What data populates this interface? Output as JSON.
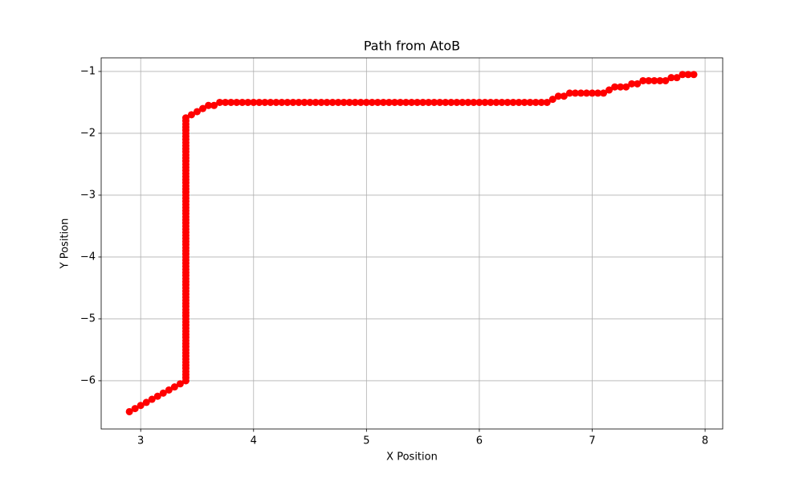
{
  "chart_data": {
    "type": "line",
    "title": "Path from AtoB",
    "x_label": "X Position",
    "y_label": "Y Position",
    "xlim": [
      2.65,
      8.156
    ],
    "ylim": [
      -6.78,
      -0.78
    ],
    "xticks": [
      3,
      4,
      5,
      6,
      7,
      8
    ],
    "yticks": [
      {
        "value": -6,
        "label": "−6"
      },
      {
        "value": -5,
        "label": "−5"
      },
      {
        "value": -4,
        "label": "−4"
      },
      {
        "value": -3,
        "label": "−3"
      },
      {
        "value": -2,
        "label": "−2"
      },
      {
        "value": -1,
        "label": "−1"
      }
    ],
    "grid": true,
    "series": [
      {
        "color": "#ff0000",
        "marker": "o",
        "x": [
          2.9,
          2.95,
          3.0,
          3.05,
          3.1,
          3.15,
          3.2,
          3.25,
          3.3,
          3.35,
          3.4,
          3.4,
          3.4,
          3.4,
          3.4,
          3.4,
          3.4,
          3.4,
          3.4,
          3.4,
          3.4,
          3.4,
          3.4,
          3.4,
          3.4,
          3.4,
          3.4,
          3.4,
          3.4,
          3.4,
          3.4,
          3.4,
          3.4,
          3.4,
          3.4,
          3.4,
          3.4,
          3.4,
          3.4,
          3.4,
          3.4,
          3.4,
          3.4,
          3.4,
          3.4,
          3.4,
          3.4,
          3.4,
          3.4,
          3.4,
          3.4,
          3.4,
          3.4,
          3.4,
          3.4,
          3.4,
          3.4,
          3.4,
          3.4,
          3.4,
          3.4,
          3.4,
          3.4,
          3.4,
          3.4,
          3.4,
          3.4,
          3.4,
          3.4,
          3.4,
          3.4,
          3.4,
          3.4,
          3.4,
          3.4,
          3.4,
          3.4,
          3.4,
          3.4,
          3.4,
          3.4,
          3.4,
          3.4,
          3.4,
          3.4,
          3.4,
          3.4,
          3.4,
          3.4,
          3.4,
          3.4,
          3.4,
          3.4,
          3.4,
          3.4,
          3.4,
          3.45,
          3.5,
          3.55,
          3.6,
          3.65,
          3.7,
          3.75,
          3.8,
          3.85,
          3.9,
          3.95,
          4.0,
          4.05,
          4.1,
          4.15,
          4.2,
          4.25,
          4.3,
          4.35,
          4.4,
          4.45,
          4.5,
          4.55,
          4.6,
          4.65,
          4.7,
          4.75,
          4.8,
          4.85,
          4.9,
          4.95,
          5.0,
          5.05,
          5.1,
          5.15,
          5.2,
          5.25,
          5.3,
          5.35,
          5.4,
          5.45,
          5.5,
          5.55,
          5.6,
          5.65,
          5.7,
          5.75,
          5.8,
          5.85,
          5.9,
          5.95,
          6.0,
          6.05,
          6.1,
          6.15,
          6.2,
          6.25,
          6.3,
          6.35,
          6.4,
          6.45,
          6.5,
          6.55,
          6.6,
          6.65,
          6.7,
          6.75,
          6.8,
          6.85,
          6.9,
          6.95,
          7.0,
          7.05,
          7.1,
          7.15,
          7.2,
          7.25,
          7.3,
          7.35,
          7.4,
          7.45,
          7.5,
          7.55,
          7.6,
          7.65,
          7.7,
          7.75,
          7.8,
          7.85,
          7.9
        ],
        "values": [
          -6.5,
          -6.45,
          -6.4,
          -6.35,
          -6.3,
          -6.25,
          -6.2,
          -6.15,
          -6.1,
          -6.05,
          -6.0,
          -5.95,
          -5.9,
          -5.85,
          -5.8,
          -5.75,
          -5.7,
          -5.65,
          -5.6,
          -5.55,
          -5.5,
          -5.45,
          -5.4,
          -5.35,
          -5.3,
          -5.25,
          -5.2,
          -5.15,
          -5.1,
          -5.05,
          -5.0,
          -4.95,
          -4.9,
          -4.85,
          -4.8,
          -4.75,
          -4.7,
          -4.65,
          -4.6,
          -4.55,
          -4.5,
          -4.45,
          -4.4,
          -4.35,
          -4.3,
          -4.25,
          -4.2,
          -4.15,
          -4.1,
          -4.05,
          -4.0,
          -3.95,
          -3.9,
          -3.85,
          -3.8,
          -3.75,
          -3.7,
          -3.65,
          -3.6,
          -3.55,
          -3.5,
          -3.45,
          -3.4,
          -3.35,
          -3.3,
          -3.25,
          -3.2,
          -3.15,
          -3.1,
          -3.05,
          -3.0,
          -2.95,
          -2.9,
          -2.85,
          -2.8,
          -2.75,
          -2.7,
          -2.65,
          -2.6,
          -2.55,
          -2.5,
          -2.45,
          -2.4,
          -2.35,
          -2.3,
          -2.25,
          -2.2,
          -2.15,
          -2.1,
          -2.05,
          -2.0,
          -1.95,
          -1.9,
          -1.85,
          -1.8,
          -1.75,
          -1.7,
          -1.65,
          -1.6,
          -1.55,
          -1.55,
          -1.5,
          -1.5,
          -1.5,
          -1.5,
          -1.5,
          -1.5,
          -1.5,
          -1.5,
          -1.5,
          -1.5,
          -1.5,
          -1.5,
          -1.5,
          -1.5,
          -1.5,
          -1.5,
          -1.5,
          -1.5,
          -1.5,
          -1.5,
          -1.5,
          -1.5,
          -1.5,
          -1.5,
          -1.5,
          -1.5,
          -1.5,
          -1.5,
          -1.5,
          -1.5,
          -1.5,
          -1.5,
          -1.5,
          -1.5,
          -1.5,
          -1.5,
          -1.5,
          -1.5,
          -1.5,
          -1.5,
          -1.5,
          -1.5,
          -1.5,
          -1.5,
          -1.5,
          -1.5,
          -1.5,
          -1.5,
          -1.5,
          -1.5,
          -1.5,
          -1.5,
          -1.5,
          -1.5,
          -1.5,
          -1.5,
          -1.5,
          -1.5,
          -1.5,
          -1.45,
          -1.4,
          -1.4,
          -1.35,
          -1.35,
          -1.35,
          -1.35,
          -1.35,
          -1.35,
          -1.35,
          -1.3,
          -1.25,
          -1.25,
          -1.25,
          -1.2,
          -1.2,
          -1.15,
          -1.15,
          -1.15,
          -1.15,
          -1.15,
          -1.1,
          -1.1,
          -1.05,
          -1.05,
          -1.05
        ]
      }
    ]
  }
}
